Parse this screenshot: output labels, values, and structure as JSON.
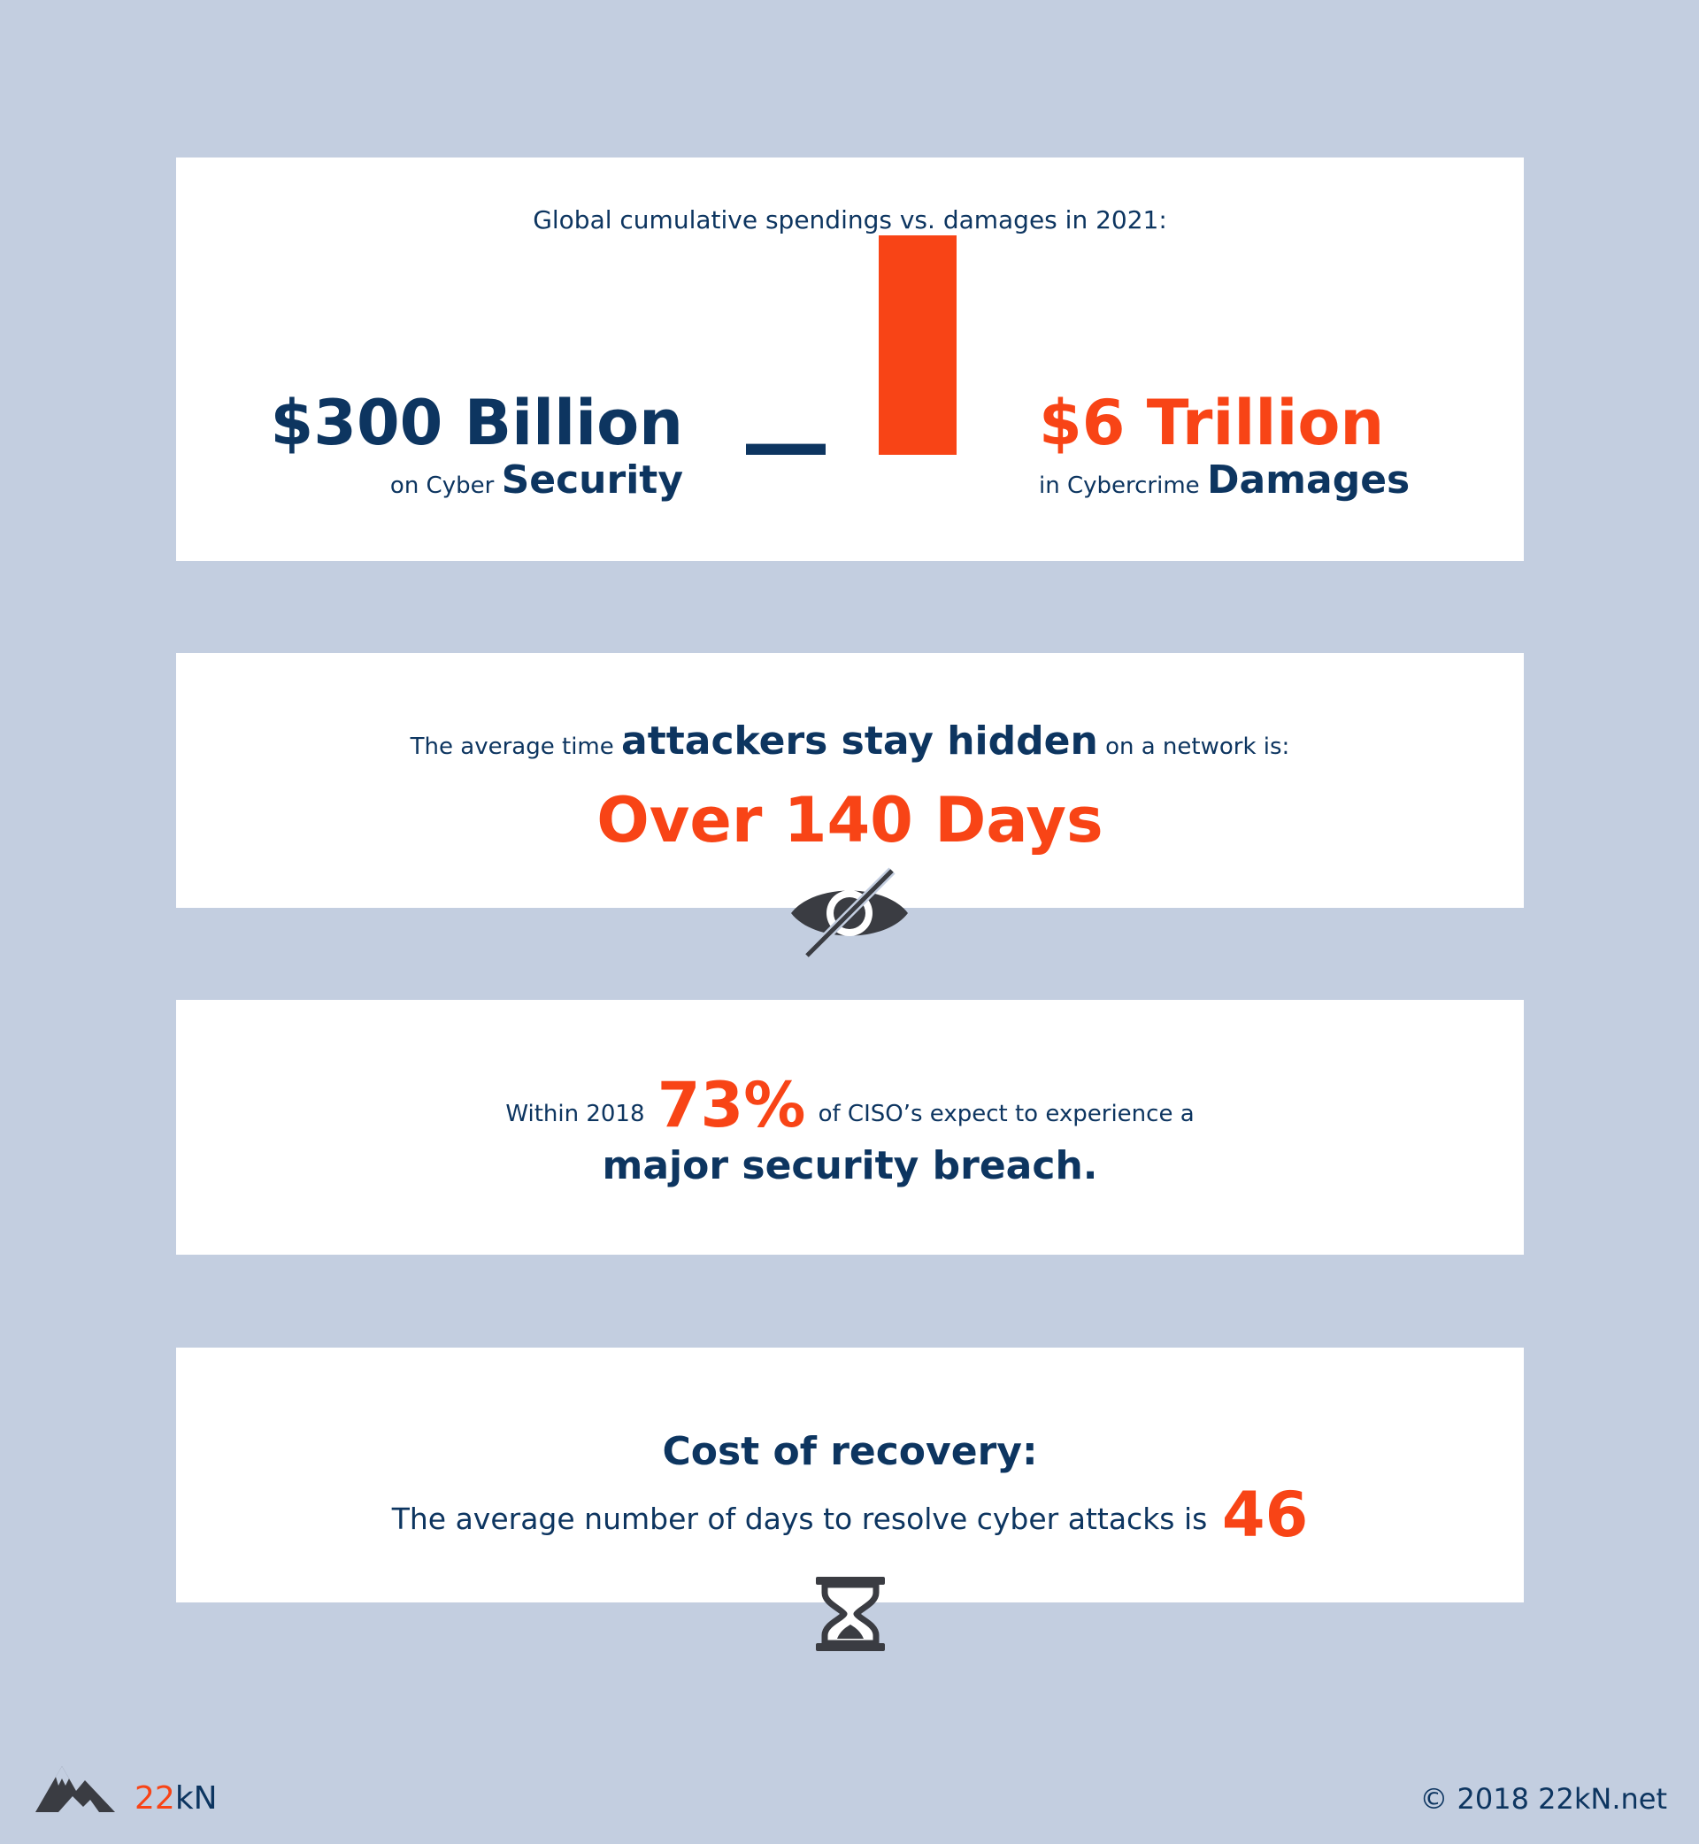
{
  "spend_card": {
    "title": "Global cumulative spendings  vs. damages in 2021:",
    "left_amount": "$300 Billion",
    "left_prefix": "on Cyber",
    "left_strong": "Security",
    "right_amount": "$6 Trillion",
    "right_prefix": "in Cybercrime",
    "right_strong": "Damages",
    "chart_data": {
      "type": "bar",
      "categories": [
        "Cyber Security spending",
        "Cybercrime Damages"
      ],
      "values": [
        0.3,
        6
      ],
      "unit": "$ Trillion",
      "colors": [
        "#0d3560",
        "#f84416"
      ]
    }
  },
  "hidden_card": {
    "prefix": "The average time",
    "strong": "attackers stay hidden",
    "suffix": "on a network is:",
    "big": "Over 140 Days",
    "icon": "eye-slash-icon"
  },
  "ciso_card": {
    "prefix": "Within 2018",
    "percent": "73%",
    "suffix": "of CISO’s expect to experience a",
    "line2": "major security breach."
  },
  "recovery_card": {
    "title": "Cost of recovery:",
    "line": "The average number of days to resolve cyber attacks is",
    "number": "46",
    "icon": "hourglass-icon"
  },
  "footer": {
    "logo_num": "22",
    "logo_txt": "kN",
    "copyright": "© 2018   22kN.net"
  },
  "colors": {
    "background": "#c3cee0",
    "navy": "#0d3560",
    "orange": "#f84416",
    "icon_gray": "#3a3c42"
  }
}
